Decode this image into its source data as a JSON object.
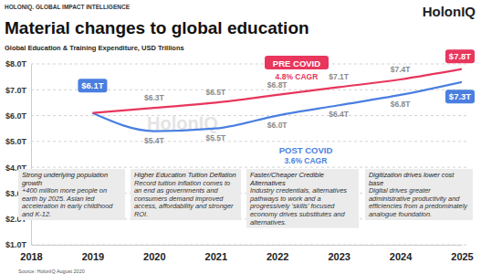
{
  "header": "HOLONIQ. GLOBAL IMPACT INTELLIGENCE",
  "logo": "HolonIQ",
  "watermark": "HolonIQ",
  "source": "Source: HolonIQ August 2020",
  "chart_data": {
    "type": "line",
    "title": "Material changes to global education",
    "subtitle": "Global Education & Training Expenditure, USD Trillions",
    "x": [
      2019,
      2020,
      2021,
      2022,
      2023,
      2024,
      2025
    ],
    "xlim": [
      2018,
      2025
    ],
    "xticks": [
      2018,
      2019,
      2020,
      2021,
      2022,
      2023,
      2024,
      2025
    ],
    "ylim": [
      1,
      8
    ],
    "yticks": [
      {
        "value": 1,
        "label": "$1.0T"
      },
      {
        "value": 2,
        "label": "$2.0T"
      },
      {
        "value": 3,
        "label": "$3.0T"
      },
      {
        "value": 4,
        "label": "$4.0T"
      },
      {
        "value": 5,
        "label": "$5.0T"
      },
      {
        "value": 6,
        "label": "$6.0T"
      },
      {
        "value": 7,
        "label": "$7.0T"
      },
      {
        "value": 8,
        "label": "$8.0T"
      }
    ],
    "grid": true,
    "data_labels": true,
    "series": [
      {
        "name": "PRE COVID",
        "cagr": "4.8% CAGR",
        "color": "#e8365d",
        "values": [
          6.1,
          6.3,
          6.5,
          6.8,
          7.1,
          7.4,
          7.8
        ],
        "value_labels": [
          null,
          "$6.3T",
          "$6.5T",
          "$6.8T",
          "$7.1T",
          "$7.4T",
          "$7.8T"
        ]
      },
      {
        "name": "POST COVID",
        "cagr": "3.6% CAGR",
        "color": "#4a7fe0",
        "values": [
          6.1,
          5.4,
          5.5,
          6.0,
          6.4,
          6.8,
          7.3
        ],
        "value_labels": [
          "$6.1T",
          "$5.4T",
          "$5.5T",
          "$6.0T",
          "$6.4T",
          "$6.8T",
          "$7.3T"
        ]
      }
    ],
    "annotations": [
      {
        "title": "Strong underlying population growth",
        "text": "+400 million more people on earth by 2025. Asian led acceleration in early childhood and K-12."
      },
      {
        "title": "Higher Education Tuition Deflation",
        "text": "Record tuition inflation comes to an end as governments and consumers demand improved access, affordability and stronger ROI."
      },
      {
        "title": "Faster/Cheaper Credible Alternatives",
        "text": "Industry credentials, alternatives pathways to work and a progressively 'skills' focused economy drives substitutes and alternatives."
      },
      {
        "title": "Digitization drives lower cost base",
        "text": "Digital drives greater administrative productivity and efficiencies from a predominately analogue foundation."
      }
    ]
  }
}
